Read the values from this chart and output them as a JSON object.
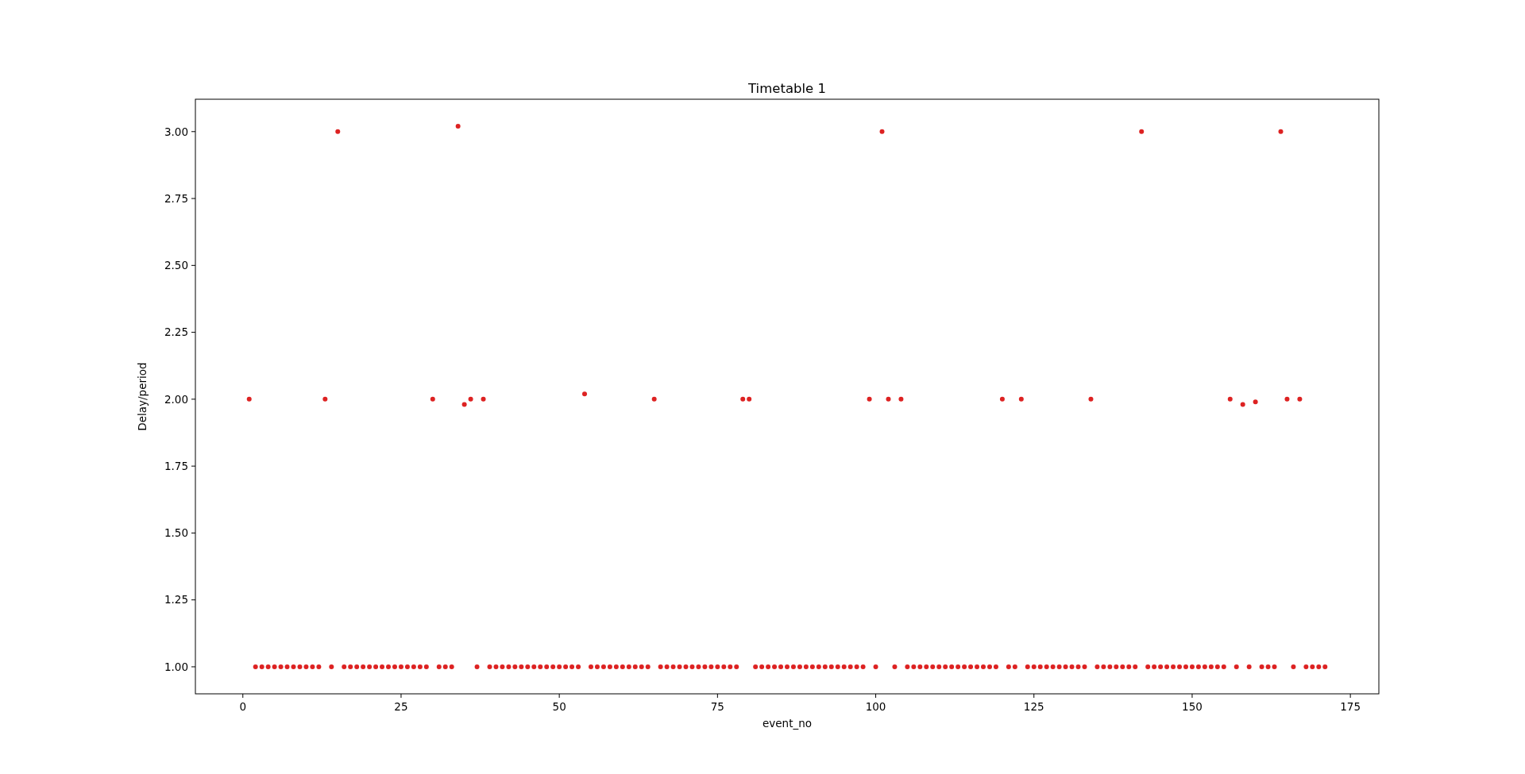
{
  "chart_data": {
    "type": "scatter",
    "title": "Timetable 1",
    "xlabel": "event_no",
    "ylabel": "Delay/period",
    "marker": "circle",
    "grid": false,
    "xlim": [
      -7.5,
      179.5
    ],
    "xticks": [
      0,
      25,
      50,
      75,
      100,
      125,
      150,
      175
    ],
    "ylim": [
      0.899,
      3.121
    ],
    "yticks": [
      {
        "value": 1,
        "label": "1.00"
      },
      {
        "value": 1.25,
        "label": "1.25"
      },
      {
        "value": 1.5,
        "label": "1.50"
      },
      {
        "value": 1.75,
        "label": "1.75"
      },
      {
        "value": 2,
        "label": "2.00"
      },
      {
        "value": 2.25,
        "label": "2.25"
      },
      {
        "value": 2.5,
        "label": "2.50"
      },
      {
        "value": 2.75,
        "label": "2.75"
      },
      {
        "value": 3,
        "label": "3.00"
      }
    ],
    "x": [
      1,
      2,
      3,
      4,
      5,
      6,
      7,
      8,
      9,
      10,
      11,
      12,
      13,
      14,
      15,
      16,
      17,
      18,
      19,
      20,
      21,
      22,
      23,
      24,
      25,
      26,
      27,
      28,
      29,
      30,
      31,
      32,
      33,
      34,
      35,
      36,
      37,
      38,
      39,
      40,
      41,
      42,
      43,
      44,
      45,
      46,
      47,
      48,
      49,
      50,
      51,
      52,
      53,
      54,
      55,
      56,
      57,
      58,
      59,
      60,
      61,
      62,
      63,
      64,
      65,
      66,
      67,
      68,
      69,
      70,
      71,
      72,
      73,
      74,
      75,
      76,
      77,
      78,
      79,
      80,
      81,
      82,
      83,
      84,
      85,
      86,
      87,
      88,
      89,
      90,
      91,
      92,
      93,
      94,
      95,
      96,
      97,
      98,
      99,
      100,
      101,
      102,
      103,
      104,
      105,
      106,
      107,
      108,
      109,
      110,
      111,
      112,
      113,
      114,
      115,
      116,
      117,
      118,
      119,
      120,
      121,
      122,
      123,
      124,
      125,
      126,
      127,
      128,
      129,
      130,
      131,
      132,
      133,
      134,
      135,
      136,
      137,
      138,
      139,
      140,
      141,
      142,
      143,
      144,
      145,
      146,
      147,
      148,
      149,
      150,
      151,
      152,
      153,
      154,
      155,
      156,
      157,
      158,
      159,
      160,
      161,
      162,
      163,
      164,
      165,
      166,
      167,
      168,
      169,
      170,
      171
    ],
    "series": [
      {
        "color": "#dd2222",
        "values": [
          2,
          1,
          1,
          1,
          1,
          1,
          1,
          1,
          1,
          1,
          1,
          1,
          2,
          1,
          3,
          1,
          1,
          1,
          1,
          1,
          1,
          1,
          1,
          1,
          1,
          1,
          1,
          1,
          1,
          2,
          1,
          1,
          1,
          3.02,
          1.98,
          2,
          1,
          2,
          1,
          1,
          1,
          1,
          1,
          1,
          1,
          1,
          1,
          1,
          1,
          1,
          1,
          1,
          1,
          2.02,
          1,
          1,
          1,
          1,
          1,
          1,
          1,
          1,
          1,
          1,
          2,
          1,
          1,
          1,
          1,
          1,
          1,
          1,
          1,
          1,
          1,
          1,
          1,
          1,
          2,
          2,
          1,
          1,
          1,
          1,
          1,
          1,
          1,
          1,
          1,
          1,
          1,
          1,
          1,
          1,
          1,
          1,
          1,
          1,
          2,
          1,
          3,
          2,
          1,
          2,
          1,
          1,
          1,
          1,
          1,
          1,
          1,
          1,
          1,
          1,
          1,
          1,
          1,
          1,
          1,
          2,
          1,
          1,
          2,
          1,
          1,
          1,
          1,
          1,
          1,
          1,
          1,
          1,
          1,
          2,
          1,
          1,
          1,
          1,
          1,
          1,
          1,
          3,
          1,
          1,
          1,
          1,
          1,
          1,
          1,
          1,
          1,
          1,
          1,
          1,
          1,
          2,
          1,
          1.98,
          1,
          1.99,
          1,
          1,
          1,
          3,
          2,
          1,
          2,
          1,
          1,
          1,
          1
        ]
      }
    ]
  }
}
